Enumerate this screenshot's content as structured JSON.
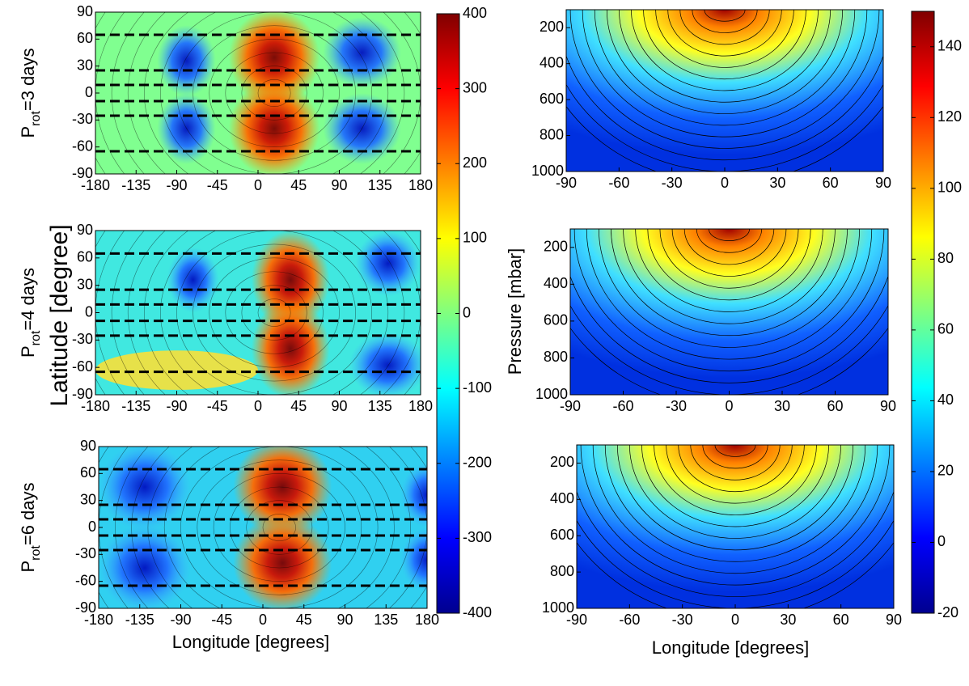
{
  "chart_data": [
    {
      "type": "contour",
      "ylabel": [
        "P",
        "rot",
        "=3 days"
      ],
      "xlim": [
        -180,
        180
      ],
      "xticks": [
        -180,
        -135,
        -90,
        -45,
        0,
        45,
        90,
        135,
        180
      ],
      "ylim": [
        -90,
        90
      ],
      "yticks": [
        -90,
        -60,
        -30,
        0,
        30,
        60,
        90
      ]
    },
    {
      "type": "contour",
      "xlim": [
        -90,
        90
      ],
      "xticks": [
        -90,
        -60,
        -30,
        0,
        30,
        60,
        90
      ],
      "ylim": [
        1000,
        100
      ],
      "yticks": [
        200,
        400,
        600,
        800,
        1000
      ]
    },
    {
      "type": "contour",
      "ylabel": [
        "P",
        "rot",
        "=4 days"
      ],
      "xlim": [
        -180,
        180
      ],
      "xticks": [
        -180,
        -135,
        -90,
        -45,
        0,
        45,
        90,
        135,
        180
      ],
      "ylim": [
        -90,
        90
      ],
      "yticks": [
        -90,
        -60,
        -30,
        0,
        30,
        60,
        90
      ]
    },
    {
      "type": "contour",
      "xlim": [
        -90,
        90
      ],
      "xticks": [
        -90,
        -60,
        -30,
        0,
        30,
        60,
        90
      ],
      "ylim": [
        1000,
        100
      ],
      "yticks": [
        200,
        400,
        600,
        800,
        1000
      ]
    },
    {
      "type": "contour",
      "ylabel": [
        "P",
        "rot",
        "=6 days"
      ],
      "xlim": [
        -180,
        180
      ],
      "xticks": [
        -180,
        -135,
        -90,
        -45,
        0,
        45,
        90,
        135,
        180
      ],
      "ylim": [
        -90,
        90
      ],
      "yticks": [
        -90,
        -60,
        -30,
        0,
        30,
        60,
        90
      ]
    },
    {
      "type": "contour",
      "xlim": [
        -90,
        90
      ],
      "xticks": [
        -90,
        -60,
        -30,
        0,
        30,
        60,
        90
      ],
      "ylim": [
        1000,
        100
      ],
      "yticks": [
        200,
        400,
        600,
        800,
        1000
      ]
    },
    {
      "type": "colorbar",
      "ylim": [
        -400,
        400
      ],
      "yticks": [
        -400,
        -300,
        -200,
        -100,
        0,
        100,
        200,
        300,
        400
      ]
    },
    {
      "type": "colorbar",
      "ylim": [
        -20,
        150
      ],
      "yticks": [
        -20,
        0,
        20,
        40,
        60,
        80,
        100,
        120,
        140
      ]
    }
  ],
  "labels": {
    "latitude": "Latitude [degree]",
    "pressure": "Pressure [mbar]",
    "longitude_left": "Longitude [degrees]",
    "longitude_right": "Longitude [degrees]"
  }
}
